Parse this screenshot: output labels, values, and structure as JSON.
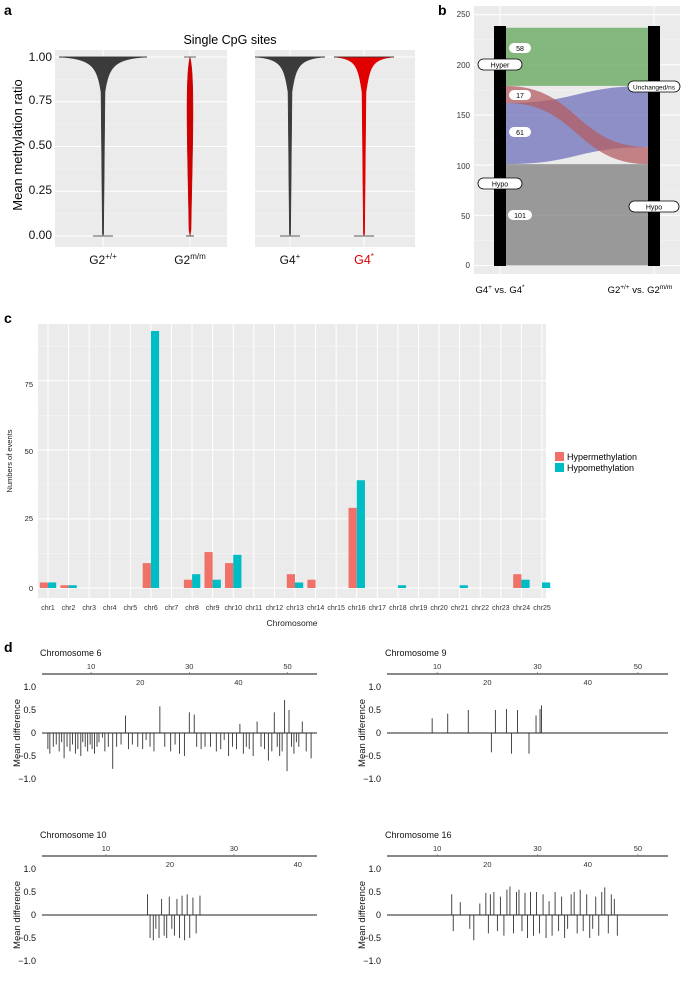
{
  "panels": {
    "a": {
      "letter": "a",
      "title": "Single CpG sites",
      "ylabel": "Mean methylation ratio",
      "yticks": [
        "0.00",
        "0.25",
        "0.50",
        "0.75",
        "1.00"
      ],
      "groups": [
        {
          "main": "G2",
          "sup": "+/+",
          "color": "#3b3b3b"
        },
        {
          "main": "G2",
          "sup": "m/m",
          "color": "#cc0000"
        },
        {
          "main": "G4",
          "sup": "+",
          "color": "#3b3b3b"
        },
        {
          "main": "G4",
          "sup": "*",
          "color": "#e00000"
        }
      ]
    },
    "b": {
      "letter": "b",
      "yticks": [
        "0",
        "50",
        "100",
        "150",
        "200",
        "250"
      ],
      "x_left": {
        "main": "G4",
        "sup": "+",
        "mid": " vs. G4",
        "sup2": "*"
      },
      "x_right": {
        "main": "G2",
        "sup": "+/+",
        "mid": " vs. G2",
        "sup2": "m/m"
      },
      "left_labels": [
        "Hyper",
        "Hypo"
      ],
      "right_labels": [
        "Unchanged/ns",
        "Hypo"
      ],
      "flows": [
        {
          "count": "58",
          "color": "#62a55a"
        },
        {
          "count": "17",
          "color": "#b35d63"
        },
        {
          "count": "61",
          "color": "#6f70b9"
        },
        {
          "count": "101",
          "color": "#7d7d7d"
        }
      ]
    },
    "c": {
      "letter": "c",
      "ylabel": "Numbers of events",
      "xlabel": "Chromosome",
      "yticks": [
        "0",
        "25",
        "50",
        "75"
      ],
      "legend": [
        "Hypermethylation",
        "Hypomethylation"
      ]
    },
    "d": {
      "letter": "d",
      "ylabel": "Mean difference",
      "yticks": [
        "1.0",
        "0.5",
        "0",
        "−0.5",
        "−1.0"
      ]
    }
  },
  "colors": {
    "hyper": "#f07167",
    "hypo": "#00bcc4"
  },
  "chart_data": [
    {
      "type": "violin",
      "title": "Single CpG sites",
      "ylabel": "Mean methylation ratio",
      "ylim": [
        0,
        1
      ],
      "categories": [
        "G2+/+",
        "G2m/m",
        "G4+",
        "G4*"
      ],
      "facets": [
        [
          "G2+/+",
          "G2m/m"
        ],
        [
          "G4+",
          "G4*"
        ]
      ],
      "medians": [
        1.0,
        1.0,
        1.0,
        1.0
      ],
      "range": [
        [
          0,
          1
        ],
        [
          0,
          1
        ],
        [
          0,
          1
        ],
        [
          0,
          1
        ]
      ]
    },
    {
      "type": "alluvial",
      "ylim": [
        0,
        250
      ],
      "axes": [
        "G4+ vs. G4*",
        "G2+/+ vs. G2m/m"
      ],
      "flows": [
        {
          "from": "Hyper",
          "to": "Unchanged/ns",
          "value": 58
        },
        {
          "from": "Hyper",
          "to": "Hypo",
          "value": 17
        },
        {
          "from": "Hypo",
          "to": "Unchanged/ns",
          "value": 61
        },
        {
          "from": "Hypo",
          "to": "Hypo",
          "value": 101
        }
      ]
    },
    {
      "type": "bar",
      "xlabel": "Chromosome",
      "ylabel": "Numbers of events",
      "ylim": [
        0,
        95
      ],
      "categories": [
        "chr1",
        "chr2",
        "chr3",
        "chr4",
        "chr5",
        "chr6",
        "chr7",
        "chr8",
        "chr9",
        "chr10",
        "chr11",
        "chr12",
        "chr13",
        "chr14",
        "chr15",
        "chr16",
        "chr17",
        "chr18",
        "chr19",
        "chr20",
        "chr21",
        "chr22",
        "chr23",
        "chr24",
        "chr25"
      ],
      "series": [
        {
          "name": "Hypermethylation",
          "values": [
            2,
            1,
            0,
            0,
            0,
            9,
            0,
            3,
            13,
            9,
            0,
            0,
            5,
            3,
            0,
            29,
            0,
            0,
            0,
            0,
            0,
            0,
            0,
            5,
            0
          ]
        },
        {
          "name": "Hypomethylation",
          "values": [
            2,
            1,
            0,
            0,
            0,
            93,
            0,
            5,
            3,
            12,
            0,
            0,
            2,
            0,
            0,
            39,
            0,
            1,
            0,
            0,
            1,
            0,
            0,
            3,
            2
          ]
        }
      ]
    },
    {
      "type": "bar",
      "subtype": "position_spikes",
      "title": "Chromosome 6",
      "ylabel": "Mean difference",
      "ylim": [
        -1,
        1
      ],
      "xlim": [
        0,
        56
      ],
      "ticks_top": [
        10,
        30,
        50
      ],
      "ticks_bottom": [
        20,
        40
      ],
      "x": [
        1.2,
        1.6,
        2.3,
        2.9,
        3.5,
        4.0,
        4.5,
        5.1,
        5.7,
        6.2,
        6.8,
        7.3,
        7.9,
        8.3,
        8.8,
        9.3,
        9.8,
        10.2,
        10.7,
        11.2,
        11.6,
        12.3,
        12.8,
        13.5,
        14.4,
        15.2,
        16.1,
        17.0,
        17.6,
        18.4,
        19.5,
        20.5,
        21.2,
        22.0,
        22.8,
        24.0,
        25.0,
        26.2,
        27.1,
        28.0,
        29.0,
        30.0,
        31.0,
        31.5,
        32.4,
        33.2,
        34.3,
        35.5,
        36.4,
        37.1,
        38.0,
        38.8,
        39.6,
        40.3,
        41.0,
        41.6,
        42.2,
        43.0,
        43.8,
        44.6,
        45.3,
        46.1,
        46.8,
        47.3,
        47.9,
        48.4,
        48.9,
        49.4,
        49.9,
        50.3,
        50.8,
        51.3,
        51.8,
        52.3,
        53.0,
        53.8,
        54.8
      ],
      "values": [
        -0.35,
        -0.45,
        -0.3,
        -0.25,
        -0.4,
        -0.2,
        -0.55,
        -0.3,
        -0.4,
        -0.25,
        -0.45,
        -0.35,
        -0.5,
        -0.2,
        -0.3,
        -0.4,
        -0.25,
        -0.35,
        -0.45,
        -0.3,
        -0.2,
        -0.1,
        -0.4,
        -0.3,
        -0.78,
        -0.3,
        -0.25,
        0.38,
        -0.35,
        -0.25,
        -0.3,
        -0.35,
        -0.15,
        -0.3,
        -0.4,
        0.58,
        -0.3,
        -0.4,
        -0.25,
        -0.45,
        -0.5,
        0.45,
        0.4,
        -0.3,
        -0.35,
        -0.3,
        -0.3,
        -0.4,
        -0.35,
        -0.15,
        -0.5,
        -0.3,
        -0.35,
        0.2,
        -0.45,
        -0.3,
        -0.35,
        -0.5,
        0.25,
        -0.3,
        -0.35,
        -0.6,
        -0.4,
        0.45,
        -0.3,
        -0.5,
        -0.4,
        0.72,
        -0.83,
        0.5,
        -0.3,
        -0.45,
        -0.2,
        -0.3,
        0.25,
        -0.4,
        -0.55
      ]
    },
    {
      "type": "bar",
      "subtype": "position_spikes",
      "title": "Chromosome 9",
      "ylabel": "Mean difference",
      "ylim": [
        -1,
        1
      ],
      "xlim": [
        0,
        56
      ],
      "ticks_top": [
        10,
        30,
        50
      ],
      "ticks_bottom": [
        20,
        40
      ],
      "x": [
        9.0,
        12.1,
        16.2,
        20.8,
        21.6,
        23.8,
        24.8,
        26.0,
        28.3,
        29.7,
        30.5
      ],
      "values": [
        0.32,
        0.42,
        0.5,
        -0.42,
        0.5,
        0.52,
        -0.45,
        0.5,
        -0.45,
        0.38,
        0.52
      ],
      "extra_x": [
        30.8
      ],
      "extra_values": [
        0.6
      ]
    },
    {
      "type": "bar",
      "subtype": "position_spikes",
      "title": "Chromosome 10",
      "ylabel": "Mean difference",
      "ylim": [
        -1,
        1
      ],
      "xlim": [
        0,
        43
      ],
      "ticks_top": [
        10,
        30
      ],
      "ticks_bottom": [
        20,
        40
      ],
      "x": [
        16.5,
        16.9,
        17.4,
        17.8,
        18.3,
        18.7,
        19.1,
        19.5,
        19.9,
        20.3,
        20.7,
        21.1,
        21.5,
        21.9,
        22.3,
        22.7,
        23.1,
        23.6,
        24.1,
        24.7
      ],
      "values": [
        0.45,
        -0.5,
        -0.55,
        -0.3,
        -0.5,
        0.35,
        -0.45,
        -0.5,
        0.4,
        -0.3,
        -0.45,
        0.35,
        -0.5,
        0.42,
        -0.55,
        0.45,
        -0.5,
        0.38,
        -0.4,
        0.42
      ]
    },
    {
      "type": "bar",
      "subtype": "position_spikes",
      "title": "Chromosome 16",
      "ylabel": "Mean difference",
      "ylim": [
        -1,
        1
      ],
      "xlim": [
        0,
        56
      ],
      "ticks_top": [
        10,
        30,
        50
      ],
      "ticks_bottom": [
        20,
        40
      ],
      "x": [
        12.9,
        13.2,
        14.6,
        16.5,
        17.3,
        18.5,
        19.7,
        20.2,
        20.6,
        21.3,
        22.0,
        22.6,
        23.3,
        23.9,
        24.5,
        25.2,
        25.8,
        26.3,
        26.9,
        27.5,
        28.0,
        28.6,
        29.2,
        29.8,
        30.4,
        31.1,
        31.7,
        32.3,
        32.9,
        33.5,
        34.2,
        34.8,
        35.4,
        36.0,
        36.7,
        37.3,
        37.9,
        38.5,
        39.1,
        39.8,
        40.4,
        41.0,
        41.6,
        42.2,
        42.8,
        43.4,
        44.1,
        44.7,
        45.3,
        45.9
      ],
      "values": [
        0.45,
        -0.35,
        0.28,
        -0.3,
        -0.55,
        0.25,
        0.48,
        -0.4,
        0.45,
        0.5,
        -0.35,
        0.4,
        -0.45,
        0.55,
        0.62,
        -0.4,
        0.5,
        0.55,
        -0.35,
        0.48,
        -0.5,
        0.5,
        -0.45,
        0.5,
        -0.4,
        0.45,
        -0.5,
        0.3,
        -0.45,
        0.5,
        -0.35,
        0.4,
        -0.5,
        -0.3,
        0.45,
        0.5,
        -0.4,
        0.55,
        -0.35,
        0.45,
        -0.5,
        -0.3,
        0.4,
        -0.45,
        0.5,
        0.6,
        -0.4,
        0.45,
        0.35,
        -0.45
      ]
    }
  ]
}
